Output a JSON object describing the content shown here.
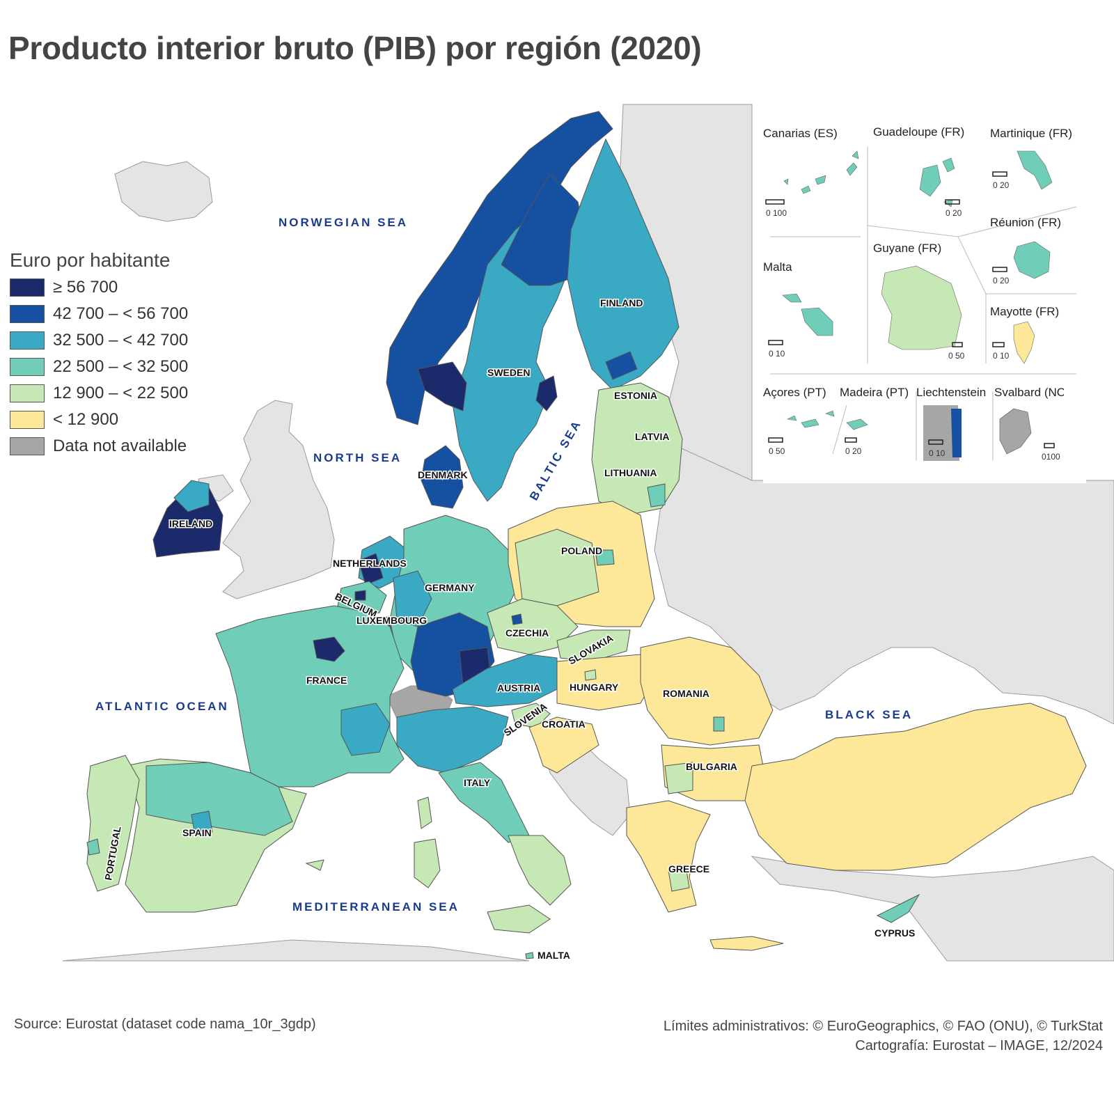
{
  "title": "Producto interior bruto (PIB) por región (2020)",
  "legend": {
    "title": "Euro por habitante",
    "items": [
      {
        "label": "≥ 56 700",
        "color": "#1b2a6b"
      },
      {
        "label": "42 700 – < 56 700",
        "color": "#1650a0"
      },
      {
        "label": "32 500 – < 42 700",
        "color": "#3aa9c4"
      },
      {
        "label": "22 500 – < 32 500",
        "color": "#6fcdb8"
      },
      {
        "label": "12 900 – < 22 500",
        "color": "#c6e8b4"
      },
      {
        "label": "< 12 900",
        "color": "#fde89a"
      },
      {
        "label": "Data not available",
        "color": "#a6a6a6"
      }
    ]
  },
  "seas": {
    "norwegian": "NORWEGIAN SEA",
    "north": "NORTH SEA",
    "baltic": "BALTIC SEA",
    "atlantic": "ATLANTIC OCEAN",
    "black": "BLACK SEA",
    "mediterranean": "MEDITERRANEAN SEA"
  },
  "countries": {
    "finland": "FINLAND",
    "sweden": "SWEDEN",
    "estonia": "ESTONIA",
    "latvia": "LATVIA",
    "lithuania": "LITHUANIA",
    "denmark": "DENMARK",
    "ireland": "IRELAND",
    "netherlands": "NETHERLANDS",
    "belgium": "BELGIUM",
    "luxembourg": "LUXEMBOURG",
    "germany": "GERMANY",
    "poland": "POLAND",
    "czechia": "CZECHIA",
    "slovakia": "SLOVAKIA",
    "austria": "AUSTRIA",
    "hungary": "HUNGARY",
    "romania": "ROMANIA",
    "slovenia": "SLOVENIA",
    "croatia": "CROATIA",
    "france": "FRANCE",
    "bulgaria": "BULGARIA",
    "italy": "ITALY",
    "spain": "SPAIN",
    "portugal": "PORTUGAL",
    "greece": "GREECE",
    "cyprus": "CYPRUS",
    "malta": "MALTA"
  },
  "insets": [
    {
      "label": "Canarias (ES)",
      "scale": "0 100"
    },
    {
      "label": "Guadeloupe (FR)",
      "scale": "0 20"
    },
    {
      "label": "Martinique (FR)",
      "scale": "0 20"
    },
    {
      "label": "Réunion (FR)",
      "scale": "0 20"
    },
    {
      "label": "Malta",
      "scale": "0 10"
    },
    {
      "label": "Guyane (FR)",
      "scale": "0 50"
    },
    {
      "label": "Mayotte (FR)",
      "scale": "0 10"
    },
    {
      "label": "Açores (PT)",
      "scale": "0 50"
    },
    {
      "label": "Madeira (PT)",
      "scale": "0 20"
    },
    {
      "label": "Liechtenstein",
      "scale": "0 10"
    },
    {
      "label": "Svalbard (NO)",
      "scale": "0100"
    }
  ],
  "footer": {
    "source": "Source: Eurostat (dataset code nama_10r_3gdp)",
    "limits": "Límites administrativos: © EuroGeographics, © FAO (ONU), © TurkStat",
    "cartography": "Cartografía: Eurostat – IMAGE, 12/2024"
  }
}
